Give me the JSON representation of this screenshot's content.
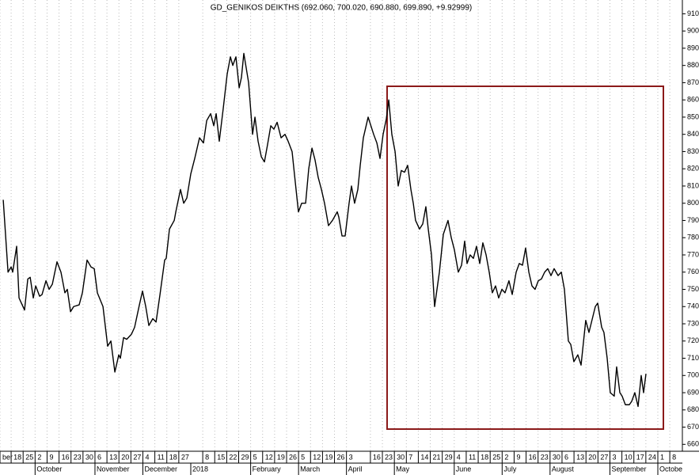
{
  "chart_data": {
    "type": "line",
    "title": "GD_GENIKOS DEIKTHS (692.060, 700.020, 690.880, 699.890, +9.92999)",
    "series": [
      {
        "color": "#000000",
        "x": [
          -0.66,
          -0.26,
          0,
          0.13,
          0.46,
          0.66,
          1.12,
          1.39,
          1.59,
          1.85,
          2.05,
          2.38,
          2.58,
          2.91,
          3.17,
          3.44,
          3.83,
          4.16,
          4.49,
          4.69,
          4.96,
          5.22,
          5.68,
          5.95,
          6.34,
          6.67,
          6.94,
          7.2,
          7.67,
          8.06,
          8.33,
          8.66,
          8.99,
          9.12,
          9.39,
          9.65,
          10.05,
          10.31,
          10.71,
          10.97,
          11.24,
          11.5,
          11.83,
          12.1,
          12.43,
          12.82,
          12.95,
          13.22,
          13.62,
          13.75,
          14.14,
          14.41,
          14.67,
          15,
          15.33,
          15.73,
          16.06,
          16.33,
          16.66,
          16.92,
          17.12,
          17.38,
          17.71,
          18.04,
          18.31,
          18.51,
          18.77,
          19.04,
          19.23,
          19.43,
          19.83,
          20.16,
          20.36,
          20.62,
          20.89,
          21.15,
          21.41,
          21.68,
          21.94,
          22.21,
          22.54,
          22.87,
          23.13,
          23.46,
          23.73,
          23.99,
          24.26,
          24.59,
          24.85,
          25.12,
          25.38,
          25.64,
          25.91,
          26.17,
          26.5,
          26.83,
          27.23,
          27.36,
          27.63,
          27.89,
          28.22,
          28.42,
          28.68,
          28.95,
          29.15,
          29.41,
          29.81,
          30.27,
          30.54,
          30.8,
          31.06,
          31.33,
          31.53,
          31.79,
          32.06,
          32.32,
          32.58,
          32.85,
          33.11,
          33.38,
          33.58,
          33.77,
          34.1,
          34.37,
          34.63,
          34.83,
          35.1,
          35.36,
          35.76,
          36.09,
          36.48,
          36.75,
          37.01,
          37.34,
          37.61,
          37.87,
          38.07,
          38.33,
          38.6,
          38.86,
          39.13,
          39.39,
          39.66,
          39.92,
          40.18,
          40.45,
          40.71,
          40.98,
          41.24,
          41.57,
          41.84,
          42.17,
          42.43,
          42.7,
          42.96,
          43.23,
          43.49,
          43.75,
          44.02,
          44.28,
          44.55,
          44.81,
          45.08,
          45.34,
          45.67,
          45.94,
          46.2,
          46.53,
          46.73,
          46.99,
          47.32,
          47.59,
          47.98,
          48.25,
          48.78,
          48.98,
          49.31,
          49.5,
          49.77,
          50.03,
          50.36,
          50.56,
          50.83,
          51.02,
          51.29,
          51.62,
          51.82,
          52.08,
          52.35,
          52.61,
          52.81,
          53.01
        ],
        "values": [
          802,
          760,
          763,
          760,
          775,
          745,
          738,
          756,
          757,
          745,
          752,
          746,
          747,
          755,
          750,
          753,
          766,
          760,
          748,
          750,
          737,
          740,
          741,
          748,
          767,
          763,
          762,
          748,
          740,
          717,
          720,
          702,
          712,
          710,
          722,
          721,
          724,
          728,
          741,
          749,
          740,
          729,
          733,
          731,
          747,
          767,
          768,
          785,
          790,
          795,
          808,
          800,
          803,
          817,
          826,
          838,
          835,
          848,
          852,
          845,
          852,
          836,
          855,
          875,
          885,
          880,
          885,
          867,
          873,
          887,
          870,
          840,
          850,
          836,
          827,
          824,
          834,
          845,
          843,
          847,
          838,
          840,
          836,
          830,
          812,
          795,
          800,
          800,
          820,
          832,
          825,
          815,
          808,
          800,
          787,
          790,
          795,
          792,
          781,
          781,
          800,
          810,
          800,
          808,
          822,
          838,
          850,
          840,
          835,
          826,
          840,
          849,
          860,
          840,
          830,
          810,
          819,
          818,
          822,
          808,
          800,
          790,
          785,
          788,
          798,
          785,
          770,
          740,
          760,
          782,
          790,
          780,
          773,
          760,
          764,
          778,
          765,
          770,
          768,
          775,
          765,
          777,
          770,
          760,
          748,
          752,
          745,
          750,
          748,
          755,
          747,
          760,
          765,
          764,
          774,
          760,
          752,
          750,
          755,
          756,
          760,
          762,
          758,
          762,
          758,
          760,
          750,
          720,
          718,
          708,
          712,
          706,
          732,
          725,
          740,
          742,
          728,
          725,
          710,
          690,
          688,
          705,
          690,
          688,
          683,
          683,
          685,
          690,
          682,
          700,
          690,
          701
        ]
      }
    ],
    "xlim": [
      -0.93,
      56.05
    ],
    "ylim": [
      656,
      918
    ],
    "yticks": [
      660,
      670,
      680,
      690,
      700,
      710,
      720,
      730,
      740,
      750,
      760,
      770,
      780,
      790,
      800,
      810,
      820,
      830,
      840,
      850,
      860,
      870,
      880,
      890,
      900,
      910
    ],
    "xticks": [
      {
        "value": -0.93,
        "label": "ber"
      },
      {
        "value": 0,
        "label": "18"
      },
      {
        "value": 1,
        "label": "25"
      },
      {
        "value": 2,
        "label": "2"
      },
      {
        "value": 3,
        "label": "9"
      },
      {
        "value": 4,
        "label": "16"
      },
      {
        "value": 5,
        "label": "23"
      },
      {
        "value": 6,
        "label": "30"
      },
      {
        "value": 7,
        "label": "6"
      },
      {
        "value": 8,
        "label": "13"
      },
      {
        "value": 9,
        "label": "20"
      },
      {
        "value": 10,
        "label": "27"
      },
      {
        "value": 11,
        "label": "4"
      },
      {
        "value": 12,
        "label": "11"
      },
      {
        "value": 13,
        "label": "18"
      },
      {
        "value": 14,
        "label": "27"
      },
      {
        "value": 16,
        "label": "8"
      },
      {
        "value": 17,
        "label": "15"
      },
      {
        "value": 18,
        "label": "22"
      },
      {
        "value": 19,
        "label": "29"
      },
      {
        "value": 20,
        "label": "5"
      },
      {
        "value": 21,
        "label": "12"
      },
      {
        "value": 22,
        "label": "19"
      },
      {
        "value": 23,
        "label": "26"
      },
      {
        "value": 24,
        "label": "5"
      },
      {
        "value": 25,
        "label": "12"
      },
      {
        "value": 26,
        "label": "19"
      },
      {
        "value": 27,
        "label": "26"
      },
      {
        "value": 28,
        "label": "3"
      },
      {
        "value": 30,
        "label": "16"
      },
      {
        "value": 31,
        "label": "23"
      },
      {
        "value": 32,
        "label": "30"
      },
      {
        "value": 33,
        "label": "7"
      },
      {
        "value": 34,
        "label": "14"
      },
      {
        "value": 35,
        "label": "21"
      },
      {
        "value": 36,
        "label": "29"
      },
      {
        "value": 37,
        "label": "4"
      },
      {
        "value": 38,
        "label": "11"
      },
      {
        "value": 39,
        "label": "18"
      },
      {
        "value": 40,
        "label": "25"
      },
      {
        "value": 41,
        "label": "2"
      },
      {
        "value": 42,
        "label": "9"
      },
      {
        "value": 43,
        "label": "16"
      },
      {
        "value": 44,
        "label": "23"
      },
      {
        "value": 45,
        "label": "30"
      },
      {
        "value": 46,
        "label": "6"
      },
      {
        "value": 47,
        "label": "13"
      },
      {
        "value": 48,
        "label": "20"
      },
      {
        "value": 49,
        "label": "27"
      },
      {
        "value": 50,
        "label": "3"
      },
      {
        "value": 51,
        "label": "10"
      },
      {
        "value": 52,
        "label": "17"
      },
      {
        "value": 53,
        "label": "24"
      },
      {
        "value": 54,
        "label": "1"
      },
      {
        "value": 55,
        "label": "8"
      }
    ],
    "month_ticks": [
      {
        "value": 2,
        "label": "October"
      },
      {
        "value": 7,
        "label": "November"
      },
      {
        "value": 11,
        "label": "December"
      },
      {
        "value": 15,
        "label": "2018"
      },
      {
        "value": 20,
        "label": "February"
      },
      {
        "value": 24,
        "label": "March"
      },
      {
        "value": 28,
        "label": "April"
      },
      {
        "value": 32,
        "label": "May"
      },
      {
        "value": 37,
        "label": "June"
      },
      {
        "value": 41,
        "label": "July"
      },
      {
        "value": 45,
        "label": "August"
      },
      {
        "value": 50,
        "label": "September"
      },
      {
        "value": 54,
        "label": "Octobe"
      }
    ],
    "grid": true
  }
}
